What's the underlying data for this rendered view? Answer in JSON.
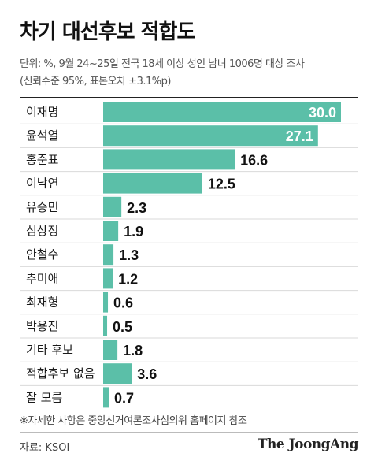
{
  "header": {
    "title": "차기 대선후보 적합도",
    "subtitle_line1": "단위: %, 9월 24~25일 전국 18세 이상 성인 남녀 1006명 대상 조사",
    "subtitle_line2": "(신뢰수준 95%, 표본오차 ±3.1%p)"
  },
  "chart_data": {
    "type": "bar",
    "orientation": "horizontal",
    "categories": [
      "이재명",
      "윤석열",
      "홍준표",
      "이낙연",
      "유승민",
      "심상정",
      "안철수",
      "추미애",
      "최재형",
      "박용진",
      "기타 후보",
      "적합후보 없음",
      "잘 모름"
    ],
    "values": [
      30.0,
      27.1,
      16.6,
      12.5,
      2.3,
      1.9,
      1.3,
      1.2,
      0.6,
      0.5,
      1.8,
      3.6,
      0.7
    ],
    "value_labels": [
      "30.0",
      "27.1",
      "16.6",
      "12.5",
      "2.3",
      "1.9",
      "1.3",
      "1.2",
      "0.6",
      "0.5",
      "1.8",
      "3.6",
      "0.7"
    ],
    "labels_inside_first": 2,
    "xlim": [
      0,
      30.0
    ],
    "grid": false,
    "bar_color": "#5bbfa8",
    "inside_label_color": "#ffffff",
    "outside_label_color": "#111111"
  },
  "footer": {
    "footnote": "※자세한 사항은 중앙선거여론조사심의위 홈페이지 참조",
    "source": "자료: KSOI",
    "brand": "The JoongAng"
  }
}
